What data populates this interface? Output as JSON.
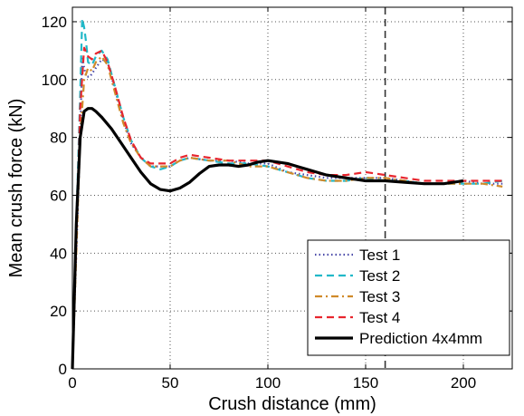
{
  "chart_data": {
    "type": "line",
    "xlabel": "Crush distance (mm)",
    "ylabel": "Mean crush force (kN)",
    "xlim": [
      0,
      225
    ],
    "ylim": [
      0,
      125
    ],
    "xticks": [
      0,
      50,
      100,
      150,
      200
    ],
    "yticks": [
      0,
      20,
      40,
      60,
      80,
      100,
      120
    ],
    "grid": true,
    "legend_position": "bottom-right",
    "reference_line_x": 160,
    "series": [
      {
        "name": "Test 1",
        "color": "#4a4aa8",
        "dash": "dotted",
        "x": [
          0,
          2,
          4,
          5,
          6,
          7,
          9,
          12,
          15,
          18,
          22,
          26,
          30,
          35,
          40,
          45,
          50,
          55,
          60,
          70,
          80,
          90,
          100,
          110,
          120,
          130,
          140,
          150,
          160,
          170,
          180,
          190,
          200,
          210,
          220
        ],
        "y": [
          0,
          40,
          80,
          108,
          104,
          101,
          101,
          104,
          107,
          106,
          96,
          86,
          78,
          73,
          70,
          70,
          70,
          72,
          73,
          72,
          72,
          71,
          71,
          68,
          67,
          66,
          66,
          66,
          66,
          65,
          64,
          64,
          65,
          64,
          64
        ]
      },
      {
        "name": "Test 2",
        "color": "#22b8c8",
        "dash": "dashed",
        "x": [
          0,
          2,
          4,
          5,
          6,
          7,
          8,
          10,
          12,
          15,
          18,
          22,
          26,
          30,
          35,
          40,
          45,
          50,
          55,
          60,
          70,
          80,
          90,
          100,
          110,
          120,
          130,
          140,
          150,
          160,
          170,
          180,
          190,
          200,
          210,
          220
        ],
        "y": [
          0,
          50,
          95,
          121,
          118,
          113,
          106,
          105,
          108,
          110,
          107,
          97,
          87,
          79,
          73,
          70,
          69,
          70,
          72,
          73,
          72,
          71,
          71,
          70,
          68,
          66,
          65,
          65,
          66,
          65,
          65,
          64,
          64,
          64,
          64,
          65
        ]
      },
      {
        "name": "Test 3",
        "color": "#d08a2a",
        "dash": "dashdot",
        "x": [
          0,
          2,
          4,
          6,
          8,
          10,
          12,
          15,
          18,
          22,
          26,
          30,
          35,
          40,
          45,
          50,
          55,
          60,
          70,
          80,
          90,
          100,
          110,
          120,
          130,
          140,
          150,
          160,
          170,
          180,
          190,
          200,
          210,
          220
        ],
        "y": [
          0,
          40,
          80,
          100,
          104,
          103,
          106,
          108,
          105,
          95,
          85,
          78,
          73,
          70,
          70,
          70,
          72,
          73,
          72,
          72,
          70,
          70,
          68,
          66,
          65,
          65,
          66,
          66,
          65,
          64,
          64,
          64,
          64,
          63
        ]
      },
      {
        "name": "Test 4",
        "color": "#e8262e",
        "dash": "dashed",
        "x": [
          0,
          2,
          4,
          6,
          8,
          10,
          12,
          15,
          18,
          22,
          26,
          30,
          35,
          40,
          45,
          50,
          55,
          60,
          70,
          80,
          90,
          100,
          110,
          120,
          130,
          140,
          150,
          160,
          170,
          180,
          190,
          200,
          210,
          220
        ],
        "y": [
          0,
          45,
          90,
          111,
          108,
          107,
          109,
          110,
          106,
          97,
          87,
          79,
          73,
          71,
          71,
          71,
          73,
          74,
          73,
          72,
          72,
          72,
          70,
          68,
          67,
          67,
          68,
          67,
          66,
          65,
          65,
          65,
          65,
          65
        ]
      },
      {
        "name": "Prediction 4x4mm",
        "color": "#000000",
        "dash": "solid",
        "x": [
          0,
          2,
          4,
          6,
          8,
          10,
          12,
          15,
          20,
          25,
          30,
          35,
          40,
          45,
          50,
          55,
          60,
          65,
          70,
          75,
          80,
          85,
          90,
          95,
          100,
          105,
          110,
          115,
          120,
          130,
          140,
          150,
          160,
          170,
          180,
          190,
          200
        ],
        "y": [
          0,
          50,
          80,
          89,
          90,
          90,
          89,
          87,
          83,
          78,
          73,
          68,
          64,
          62,
          61.5,
          62.5,
          64.5,
          67.5,
          70,
          70.5,
          70.5,
          70,
          70.5,
          71.5,
          72,
          71.5,
          71,
          70,
          69,
          67,
          66,
          65,
          65,
          64.5,
          64,
          64,
          65
        ]
      }
    ]
  }
}
